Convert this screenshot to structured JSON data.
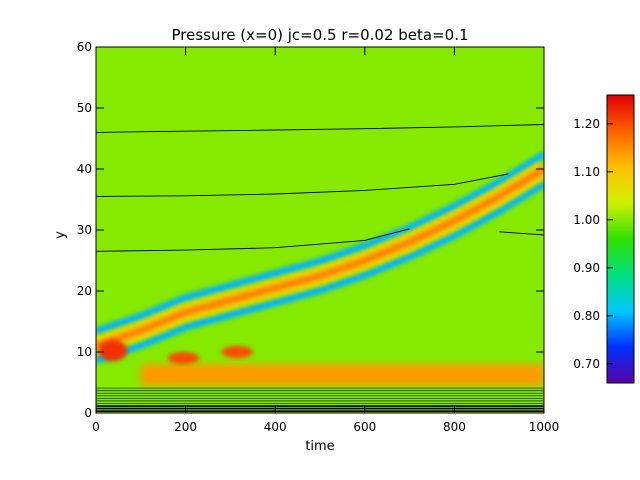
{
  "chart_data": {
    "type": "heatmap",
    "title": "Pressure (x=0) jc=0.5 r=0.02 beta=0.1",
    "xlabel": "time",
    "ylabel": "y",
    "xlim": [
      0,
      1000
    ],
    "ylim": [
      0,
      60
    ],
    "xticks": [
      "0",
      "200",
      "400",
      "600",
      "800",
      "1000"
    ],
    "yticks": [
      "0",
      "10",
      "20",
      "30",
      "40",
      "50",
      "60"
    ],
    "background_value": 1.0,
    "colorbar": {
      "range": [
        0.66,
        1.26
      ],
      "ticks": [
        "0.70",
        "0.80",
        "0.90",
        "1.00",
        "1.10",
        "1.20"
      ],
      "colormap": [
        "#5a00a0",
        "#0030ff",
        "#00c8ff",
        "#00e080",
        "#30e000",
        "#d0f000",
        "#ffc000",
        "#ff6000",
        "#e00000"
      ]
    },
    "features": {
      "front_centerline": {
        "time": [
          0,
          100,
          200,
          300,
          400,
          500,
          600,
          700,
          800,
          900,
          1000
        ],
        "y": [
          11,
          13.5,
          16.5,
          18.5,
          20.5,
          22.5,
          25,
          28,
          31.5,
          35.5,
          40
        ]
      },
      "front_value": 1.16,
      "front_trough_value": 0.8,
      "hot_spots": [
        {
          "time": [
            5,
            70
          ],
          "y": [
            8.5,
            12
          ],
          "value": 1.22
        },
        {
          "time": [
            160,
            230
          ],
          "y": [
            8,
            10
          ],
          "value": 1.2
        },
        {
          "time": [
            280,
            350
          ],
          "y": [
            9,
            11
          ],
          "value": 1.2
        }
      ],
      "low_band": {
        "time": [
          100,
          1000
        ],
        "y": [
          4.5,
          8
        ],
        "value": 1.14
      },
      "contour_lines": [
        {
          "time": [
            0,
            200,
            400,
            600,
            800,
            1000
          ],
          "y": [
            46,
            46.2,
            46.4,
            46.6,
            46.9,
            47.3
          ]
        },
        {
          "time": [
            0,
            200,
            400,
            600,
            800,
            920
          ],
          "y": [
            35.5,
            35.6,
            35.9,
            36.5,
            37.5,
            39.2
          ]
        },
        {
          "time": [
            0,
            200,
            400,
            600,
            700
          ],
          "y": [
            26.5,
            26.7,
            27.1,
            28.3,
            30.2
          ]
        },
        {
          "time": [
            900,
            1000
          ],
          "y": [
            29.7,
            29.2
          ]
        }
      ]
    }
  }
}
